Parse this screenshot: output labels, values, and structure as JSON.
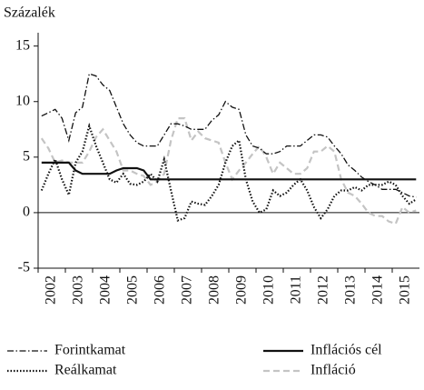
{
  "chart_data": {
    "type": "line",
    "y_label": "Százalék",
    "categories": [
      null,
      "2002",
      null,
      null,
      null,
      "2003",
      null,
      null,
      null,
      "2004",
      null,
      null,
      null,
      "2005",
      null,
      null,
      null,
      "2006",
      null,
      null,
      null,
      "2007",
      null,
      null,
      null,
      "2008",
      null,
      null,
      null,
      "2009",
      null,
      null,
      null,
      "2010",
      null,
      null,
      null,
      "2011",
      null,
      null,
      null,
      "2012",
      null,
      null,
      null,
      "2013",
      null,
      null,
      null,
      "2014",
      null,
      null,
      null,
      "2015",
      null,
      null
    ],
    "ylim": [
      -5,
      16.2
    ],
    "yticks": [
      -5,
      0,
      5,
      10,
      15
    ],
    "series": [
      {
        "name": "Forintkamat",
        "color": "#111111",
        "dash": "7,2.5,1.5,2.5",
        "values": [
          8.7,
          9.0,
          9.3,
          8.5,
          6.5,
          9.0,
          9.5,
          12.5,
          12.3,
          11.5,
          11.0,
          9.5,
          8.0,
          7.0,
          6.3,
          6.0,
          6.0,
          6.0,
          7.0,
          8.0,
          8.0,
          7.8,
          7.5,
          7.5,
          7.5,
          8.3,
          8.8,
          10.0,
          9.5,
          9.3,
          7.0,
          6.0,
          5.8,
          5.3,
          5.3,
          5.5,
          6.0,
          6.0,
          6.0,
          6.5,
          7.0,
          7.0,
          6.8,
          6.0,
          5.3,
          4.3,
          3.8,
          3.2,
          2.8,
          2.5,
          2.1,
          2.1,
          2.1,
          1.8,
          1.5,
          1.4
        ]
      },
      {
        "name": "Inflációs cél",
        "color": "#111111",
        "dash": "none",
        "values": [
          4.5,
          4.5,
          4.5,
          4.5,
          4.5,
          3.8,
          3.5,
          3.5,
          3.5,
          3.5,
          3.5,
          3.8,
          4.0,
          4.0,
          4.0,
          3.8,
          3.0,
          3.0,
          3.0,
          3.0,
          3.0,
          3.0,
          3.0,
          3.0,
          3.0,
          3.0,
          3.0,
          3.0,
          3.0,
          3.0,
          3.0,
          3.0,
          3.0,
          3.0,
          3.0,
          3.0,
          3.0,
          3.0,
          3.0,
          3.0,
          3.0,
          3.0,
          3.0,
          3.0,
          3.0,
          3.0,
          3.0,
          3.0,
          3.0,
          3.0,
          3.0,
          3.0,
          3.0,
          3.0,
          3.0,
          3.0
        ]
      },
      {
        "name": "Reálkamat",
        "color": "#111111",
        "dash": "1.5,2",
        "values": [
          2.0,
          3.5,
          4.8,
          3.0,
          1.6,
          4.5,
          5.5,
          7.8,
          6.0,
          4.5,
          3.0,
          2.7,
          3.5,
          2.6,
          2.5,
          2.8,
          3.5,
          2.8,
          4.8,
          2.0,
          -0.7,
          -0.5,
          1.0,
          0.8,
          0.7,
          1.5,
          2.5,
          4.5,
          6.0,
          6.5,
          3.0,
          1.0,
          0.0,
          0.3,
          2.0,
          1.5,
          1.8,
          2.5,
          3.0,
          2.0,
          0.5,
          -0.5,
          0.3,
          1.5,
          2.0,
          2.0,
          2.3,
          2.0,
          2.5,
          2.5,
          2.5,
          2.8,
          2.5,
          1.5,
          0.8,
          1.2
        ]
      },
      {
        "name": "Infláció",
        "color": "#c4c4c4",
        "dash": "7,4",
        "values": [
          6.7,
          5.8,
          4.5,
          4.7,
          4.5,
          4.5,
          4.5,
          5.5,
          6.8,
          7.5,
          6.5,
          5.5,
          3.8,
          3.8,
          3.5,
          3.3,
          2.5,
          2.8,
          3.5,
          6.5,
          8.5,
          8.5,
          6.5,
          7.3,
          6.7,
          6.5,
          6.3,
          4.5,
          3.0,
          3.8,
          4.5,
          5.3,
          6.0,
          5.0,
          3.5,
          4.5,
          4.0,
          3.5,
          3.5,
          4.0,
          5.5,
          5.5,
          6.0,
          5.5,
          3.0,
          1.8,
          1.5,
          0.8,
          0.0,
          -0.3,
          -0.3,
          -0.8,
          -1.0,
          0.5,
          0.0,
          0.2
        ]
      }
    ]
  }
}
